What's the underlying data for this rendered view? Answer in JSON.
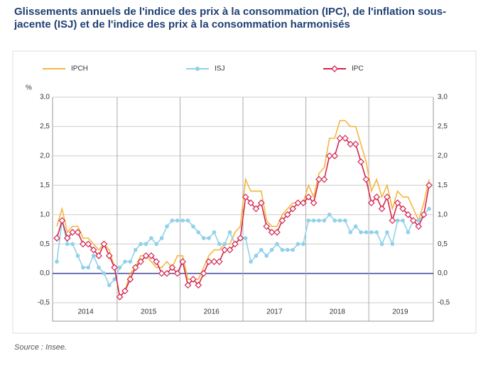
{
  "chart_data": {
    "type": "line",
    "title": "Glissements annuels de l'indice des prix à la consommation (IPC), de l'inflation sous-jacente (ISJ) et de l'indice des prix à la consommation harmonisés",
    "source": "Source : Insee.",
    "y_unit": "%",
    "categories": [
      null,
      null,
      null,
      null,
      null,
      null,
      "2014",
      null,
      null,
      null,
      null,
      null,
      null,
      null,
      null,
      null,
      null,
      null,
      "2015",
      null,
      null,
      null,
      null,
      null,
      null,
      null,
      null,
      null,
      null,
      null,
      "2016",
      null,
      null,
      null,
      null,
      null,
      null,
      null,
      null,
      null,
      null,
      null,
      "2017",
      null,
      null,
      null,
      null,
      null,
      null,
      null,
      null,
      null,
      null,
      null,
      "2018",
      null,
      null,
      null,
      null,
      null,
      null,
      null,
      null,
      null,
      null,
      null,
      "2019",
      null,
      null,
      null,
      null,
      null
    ],
    "series": [
      {
        "name": "IPCH",
        "color": "#f4b63f",
        "marker": "none",
        "values": [
          0.8,
          1.1,
          0.7,
          0.8,
          0.8,
          0.6,
          0.6,
          0.5,
          0.4,
          0.5,
          0.4,
          0.1,
          -0.4,
          -0.3,
          0.0,
          0.1,
          0.3,
          0.3,
          0.2,
          0.1,
          0.1,
          0.2,
          0.1,
          0.3,
          0.3,
          -0.1,
          -0.1,
          -0.1,
          0.1,
          0.3,
          0.4,
          0.4,
          0.5,
          0.5,
          0.7,
          0.8,
          1.6,
          1.4,
          1.4,
          1.4,
          0.9,
          0.8,
          0.8,
          1.0,
          1.1,
          1.2,
          1.2,
          1.2,
          1.5,
          1.3,
          1.7,
          1.8,
          2.3,
          2.3,
          2.6,
          2.6,
          2.5,
          2.5,
          2.2,
          1.9,
          1.4,
          1.6,
          1.3,
          1.5,
          1.1,
          1.4,
          1.3,
          1.3,
          1.1,
          0.9,
          1.2,
          1.6
        ]
      },
      {
        "name": "ISJ",
        "color": "#8fd1ea",
        "marker": "circle",
        "values": [
          0.2,
          0.9,
          0.5,
          0.5,
          0.3,
          0.1,
          0.1,
          0.3,
          0.1,
          0.0,
          -0.2,
          -0.1,
          0.1,
          0.2,
          0.2,
          0.4,
          0.5,
          0.5,
          0.6,
          0.5,
          0.6,
          0.8,
          0.9,
          0.9,
          0.9,
          0.9,
          0.8,
          0.7,
          0.6,
          0.6,
          0.7,
          0.5,
          0.5,
          0.7,
          0.5,
          0.6,
          0.6,
          0.2,
          0.3,
          0.4,
          0.3,
          0.4,
          0.5,
          0.4,
          0.4,
          0.4,
          0.5,
          0.5,
          0.9,
          0.9,
          0.9,
          0.9,
          1.0,
          0.9,
          0.9,
          0.9,
          0.7,
          0.8,
          0.7,
          0.7,
          0.7,
          0.7,
          0.5,
          0.7,
          0.5,
          0.9,
          0.9,
          0.7,
          0.9,
          0.9,
          1.0,
          1.1
        ]
      },
      {
        "name": "IPC",
        "color": "#d42550",
        "marker": "diamond",
        "values": [
          0.6,
          0.9,
          0.6,
          0.7,
          0.7,
          0.5,
          0.5,
          0.4,
          0.3,
          0.5,
          0.3,
          0.1,
          -0.4,
          -0.3,
          -0.1,
          0.1,
          0.2,
          0.3,
          0.3,
          0.2,
          0.0,
          0.0,
          0.1,
          0.0,
          0.2,
          -0.2,
          -0.1,
          -0.2,
          0.0,
          0.2,
          0.2,
          0.2,
          0.4,
          0.4,
          0.5,
          0.6,
          1.3,
          1.2,
          1.1,
          1.2,
          0.8,
          0.7,
          0.7,
          0.9,
          1.0,
          1.1,
          1.2,
          1.2,
          1.3,
          1.2,
          1.6,
          1.6,
          2.0,
          2.0,
          2.3,
          2.3,
          2.2,
          2.2,
          1.9,
          1.6,
          1.2,
          1.3,
          1.1,
          1.3,
          0.9,
          1.2,
          1.1,
          1.0,
          0.9,
          0.8,
          1.0,
          1.5
        ]
      }
    ],
    "ylim": [
      -0.5,
      3.0
    ],
    "yticks": [
      {
        "value": -0.5,
        "label": "-0,5"
      },
      {
        "value": 0,
        "label": "0,0"
      },
      {
        "value": 0.5,
        "label": "0,5"
      },
      {
        "value": 1,
        "label": "1,0"
      },
      {
        "value": 1.5,
        "label": "1,5"
      },
      {
        "value": 2,
        "label": "2,0"
      },
      {
        "value": 2.5,
        "label": "2,5"
      },
      {
        "value": 3,
        "label": "3,0"
      }
    ],
    "y2lim": [
      -0.5,
      3.0
    ],
    "y2ticks": [
      {
        "value": -0.5,
        "label": "-0,5"
      },
      {
        "value": 0,
        "label": "0,0"
      },
      {
        "value": 0.5,
        "label": "0,5"
      },
      {
        "value": 1,
        "label": "1,0"
      },
      {
        "value": 1.5,
        "label": "1,5"
      },
      {
        "value": 2,
        "label": "2,0"
      },
      {
        "value": 2.5,
        "label": "2,5"
      },
      {
        "value": 3,
        "label": "3,0"
      }
    ],
    "zero_line_color": "#3b3f9a",
    "grid": true,
    "legend": "top"
  }
}
